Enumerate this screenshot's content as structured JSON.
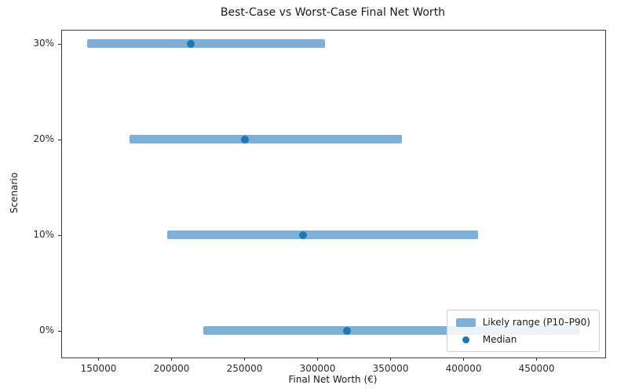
{
  "chart_data": {
    "type": "bar",
    "subtype": "horizontal_range_with_median_marker",
    "title": "Best-Case vs Worst-Case Final Net Worth",
    "xlabel": "Final Net Worth (€)",
    "ylabel": "Scenario",
    "categories": [
      "0%",
      "10%",
      "20%",
      "30%"
    ],
    "series": [
      {
        "name": "Likely range (P10–P90)",
        "type": "range",
        "p10": [
          222000,
          197000,
          171000,
          142000
        ],
        "p90": [
          480000,
          410000,
          358000,
          305000
        ]
      },
      {
        "name": "Median",
        "type": "point",
        "values": [
          320000,
          290000,
          250000,
          213000
        ]
      }
    ],
    "xticks": [
      150000,
      200000,
      250000,
      300000,
      350000,
      400000,
      450000
    ],
    "xlim": [
      125000,
      497000
    ],
    "grid": false,
    "legend": {
      "position": "lower right",
      "range_label": "Likely range (P10–P90)",
      "median_label": "Median"
    },
    "colors": {
      "range": "#7eafd6",
      "median": "#1f77b4",
      "axis": "#3c3c3c",
      "background": "#ffffff"
    }
  }
}
